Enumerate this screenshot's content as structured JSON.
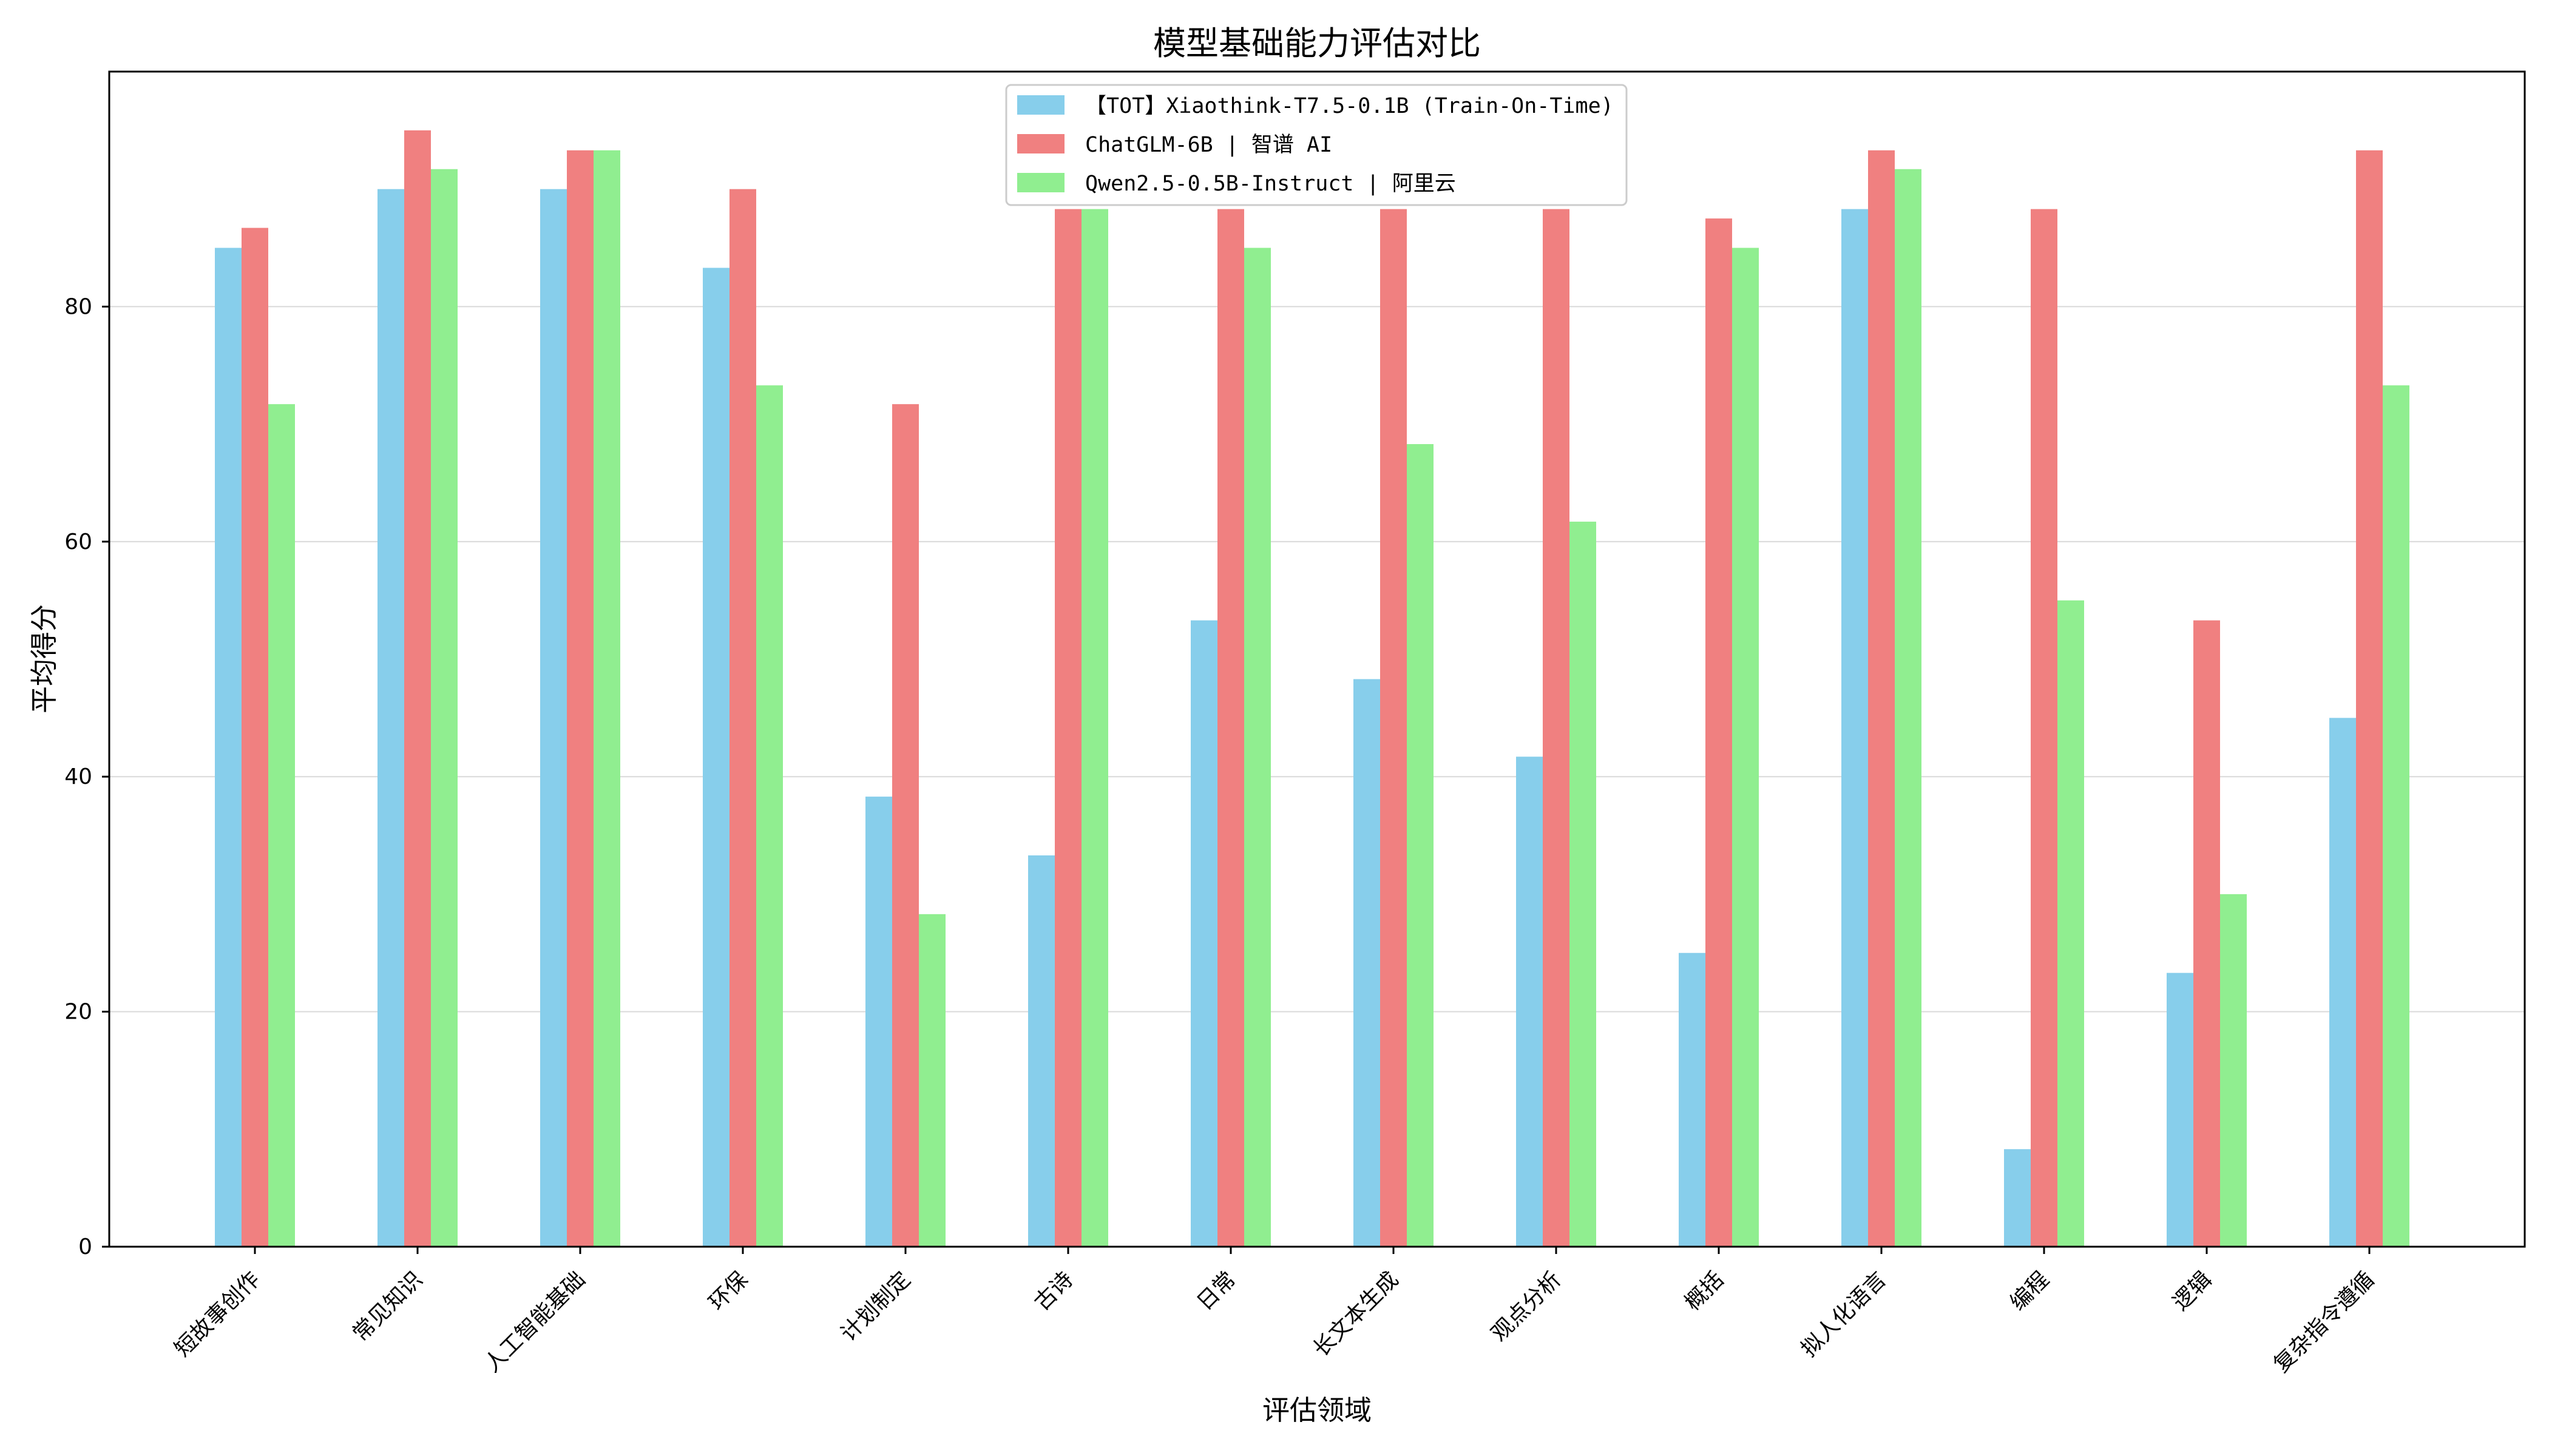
{
  "chart_data": {
    "type": "bar",
    "title": "模型基础能力评估对比",
    "xlabel": "评估领域",
    "ylabel": "平均得分",
    "ylim": [
      0,
      100
    ],
    "yticks": [
      0,
      20,
      40,
      60,
      80
    ],
    "grid": "y",
    "legend_position": "top-center",
    "categories": [
      "短故事创作",
      "常见知识",
      "人工智能基础",
      "环保",
      "计划制定",
      "古诗",
      "日常",
      "长文本生成",
      "观点分析",
      "概括",
      "拟人化语言",
      "编程",
      "逻辑",
      "复杂指令遵循"
    ],
    "series": [
      {
        "name": "【TOT】Xiaothink-T7.5-0.1B (Train-On-Time)",
        "color": "#87CEEB",
        "values": [
          85,
          90,
          90,
          83.3,
          38.3,
          33.3,
          53.3,
          48.3,
          41.7,
          25,
          88.3,
          8.3,
          23.3,
          45
        ]
      },
      {
        "name": "ChatGLM-6B | 智谱 AI",
        "color": "#F08080",
        "values": [
          86.7,
          95,
          93.3,
          90,
          71.7,
          88.3,
          88.3,
          88.3,
          88.3,
          87.5,
          93.3,
          88.3,
          53.3,
          93.3
        ]
      },
      {
        "name": "Qwen2.5-0.5B-Instruct | 阿里云",
        "color": "#90EE90",
        "values": [
          71.7,
          91.7,
          93.3,
          73.3,
          28.3,
          88.3,
          85,
          68.3,
          61.7,
          85,
          91.7,
          55,
          30,
          73.3
        ]
      }
    ]
  }
}
